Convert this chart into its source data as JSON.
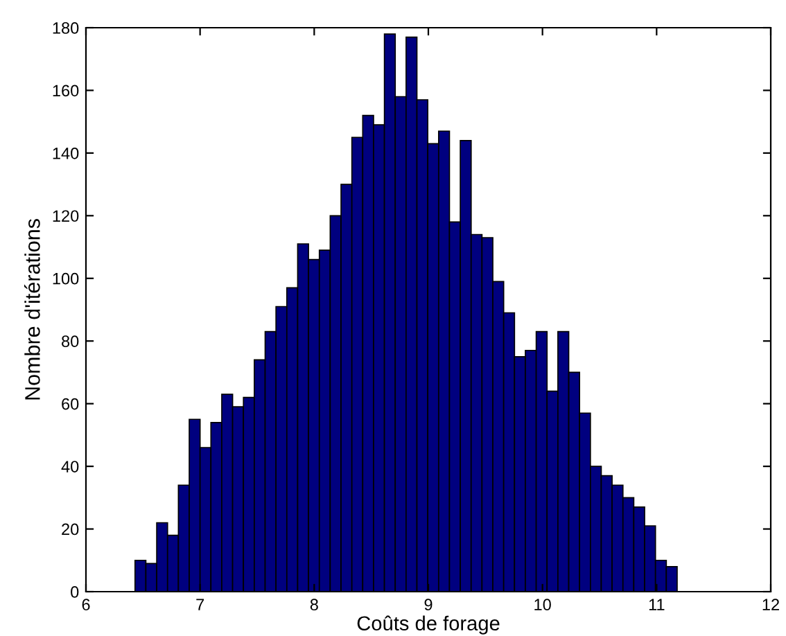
{
  "chart_data": {
    "type": "histogram",
    "xlabel": "Coûts de forage",
    "ylabel": "Nombre d'itérations",
    "color": "#00007f",
    "bins": [
      6.43,
      6.525,
      6.62,
      6.715,
      6.81,
      6.905,
      7.0,
      7.095,
      7.19,
      7.285,
      7.38,
      7.475,
      7.57,
      7.665,
      7.76,
      7.855,
      7.95,
      8.045,
      8.14,
      8.235,
      8.33,
      8.425,
      8.52,
      8.615,
      8.71,
      8.805,
      8.9,
      8.995,
      9.09,
      9.185,
      9.28,
      9.375,
      9.47,
      9.565,
      9.66,
      9.755,
      9.85,
      9.945,
      10.04,
      10.135,
      10.23,
      10.325,
      10.42,
      10.515,
      10.61,
      10.705,
      10.8,
      10.895,
      10.99,
      11.085,
      11.18
    ],
    "values": [
      10,
      9,
      22,
      18,
      34,
      55,
      46,
      54,
      63,
      59,
      62,
      74,
      83,
      91,
      97,
      111,
      106,
      109,
      120,
      130,
      145,
      152,
      149,
      178,
      158,
      177,
      157,
      143,
      147,
      118,
      144,
      114,
      113,
      99,
      89,
      75,
      77,
      83,
      64,
      83,
      70,
      57,
      40,
      37,
      34,
      30,
      27,
      21,
      10,
      8
    ],
    "xlim": [
      6,
      12
    ],
    "xticks": [
      6,
      7,
      8,
      9,
      10,
      11,
      12
    ],
    "ylim": [
      0,
      180
    ],
    "yticks": [
      0,
      20,
      40,
      60,
      80,
      100,
      120,
      140,
      160,
      180
    ],
    "grid": false
  }
}
